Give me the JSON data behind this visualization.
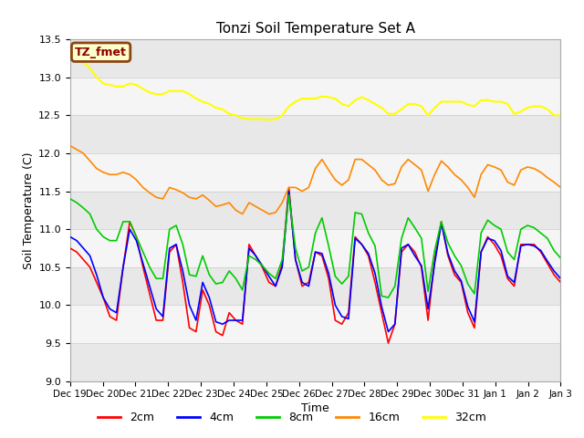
{
  "title": "Tonzi Soil Temperature Set A",
  "xlabel": "Time",
  "ylabel": "Soil Temperature (C)",
  "ylim": [
    9.0,
    13.5
  ],
  "yticks": [
    9.0,
    9.5,
    10.0,
    10.5,
    11.0,
    11.5,
    12.0,
    12.5,
    13.0,
    13.5
  ],
  "x_labels": [
    "Dec 19",
    "Dec 20",
    "Dec 21",
    "Dec 22",
    "Dec 23",
    "Dec 24",
    "Dec 25",
    "Dec 26",
    "Dec 27",
    "Dec 28",
    "Dec 29",
    "Dec 30",
    "Dec 31",
    "Jan 1",
    "Jan 2",
    "Jan 3"
  ],
  "annotation_text": "TZ_fmet",
  "annotation_bg": "#ffffcc",
  "annotation_border": "#8B4513",
  "annotation_text_color": "#8B0000",
  "colors": {
    "2cm": "#ff0000",
    "4cm": "#0000ff",
    "8cm": "#00cc00",
    "16cm": "#ff8800",
    "32cm": "#ffff00"
  },
  "bg_bands": [
    {
      "ymin": 9.0,
      "ymax": 9.5,
      "color": "#e8e8e8"
    },
    {
      "ymin": 9.5,
      "ymax": 10.0,
      "color": "#f5f5f5"
    },
    {
      "ymin": 10.0,
      "ymax": 10.5,
      "color": "#e8e8e8"
    },
    {
      "ymin": 10.5,
      "ymax": 11.0,
      "color": "#f5f5f5"
    },
    {
      "ymin": 11.0,
      "ymax": 11.5,
      "color": "#e8e8e8"
    },
    {
      "ymin": 11.5,
      "ymax": 12.0,
      "color": "#f5f5f5"
    },
    {
      "ymin": 12.0,
      "ymax": 12.5,
      "color": "#e8e8e8"
    },
    {
      "ymin": 12.5,
      "ymax": 13.0,
      "color": "#f5f5f5"
    },
    {
      "ymin": 13.0,
      "ymax": 13.5,
      "color": "#e8e8e8"
    }
  ],
  "series_2cm": [
    10.75,
    10.7,
    10.6,
    10.5,
    10.3,
    10.1,
    9.85,
    9.8,
    10.5,
    11.1,
    10.9,
    10.5,
    10.15,
    9.8,
    9.8,
    10.7,
    10.8,
    10.3,
    9.7,
    9.65,
    10.2,
    10.0,
    9.65,
    9.6,
    9.9,
    9.8,
    9.75,
    10.8,
    10.65,
    10.5,
    10.3,
    10.25,
    10.55,
    11.55,
    10.6,
    10.25,
    10.3,
    10.7,
    10.65,
    10.35,
    9.8,
    9.75,
    9.9,
    10.9,
    10.8,
    10.65,
    10.3,
    9.9,
    9.5,
    9.75,
    10.7,
    10.8,
    10.7,
    10.5,
    9.8,
    10.6,
    11.1,
    10.65,
    10.4,
    10.3,
    9.9,
    9.7,
    10.7,
    10.9,
    10.8,
    10.65,
    10.35,
    10.25,
    10.8,
    10.8,
    10.8,
    10.7,
    10.55,
    10.4,
    10.3
  ],
  "series_4cm": [
    10.9,
    10.85,
    10.75,
    10.65,
    10.4,
    10.1,
    9.95,
    9.9,
    10.5,
    11.0,
    10.85,
    10.55,
    10.25,
    9.95,
    9.85,
    10.75,
    10.8,
    10.45,
    10.0,
    9.8,
    10.3,
    10.1,
    9.78,
    9.75,
    9.8,
    9.8,
    9.8,
    10.75,
    10.65,
    10.52,
    10.38,
    10.25,
    10.5,
    11.5,
    10.6,
    10.3,
    10.25,
    10.7,
    10.68,
    10.42,
    10.0,
    9.85,
    9.82,
    10.88,
    10.8,
    10.68,
    10.42,
    9.98,
    9.65,
    9.75,
    10.75,
    10.8,
    10.65,
    10.52,
    9.95,
    10.55,
    11.08,
    10.68,
    10.45,
    10.32,
    9.98,
    9.78,
    10.7,
    10.88,
    10.85,
    10.72,
    10.38,
    10.3,
    10.78,
    10.8,
    10.78,
    10.72,
    10.58,
    10.45,
    10.35
  ],
  "series_8cm": [
    11.4,
    11.35,
    11.28,
    11.2,
    11.0,
    10.9,
    10.85,
    10.85,
    11.1,
    11.1,
    10.9,
    10.7,
    10.5,
    10.35,
    10.35,
    11.0,
    11.05,
    10.8,
    10.4,
    10.38,
    10.65,
    10.4,
    10.28,
    10.3,
    10.45,
    10.35,
    10.2,
    10.65,
    10.6,
    10.52,
    10.42,
    10.35,
    10.6,
    11.45,
    10.75,
    10.45,
    10.5,
    10.95,
    11.15,
    10.78,
    10.38,
    10.28,
    10.38,
    11.22,
    11.2,
    10.95,
    10.78,
    10.12,
    10.1,
    10.25,
    10.88,
    11.15,
    11.02,
    10.88,
    10.18,
    10.72,
    11.1,
    10.82,
    10.65,
    10.52,
    10.28,
    10.15,
    10.95,
    11.12,
    11.05,
    11.0,
    10.7,
    10.6,
    11.0,
    11.05,
    11.02,
    10.95,
    10.88,
    10.72,
    10.62
  ],
  "series_16cm": [
    12.1,
    12.05,
    12.0,
    11.9,
    11.8,
    11.75,
    11.72,
    11.72,
    11.75,
    11.72,
    11.65,
    11.55,
    11.48,
    11.42,
    11.4,
    11.55,
    11.52,
    11.48,
    11.42,
    11.4,
    11.45,
    11.38,
    11.3,
    11.32,
    11.35,
    11.25,
    11.2,
    11.35,
    11.3,
    11.25,
    11.2,
    11.22,
    11.35,
    11.55,
    11.55,
    11.5,
    11.55,
    11.8,
    11.92,
    11.78,
    11.65,
    11.58,
    11.65,
    11.92,
    11.92,
    11.85,
    11.78,
    11.65,
    11.58,
    11.6,
    11.82,
    11.92,
    11.85,
    11.78,
    11.5,
    11.72,
    11.9,
    11.82,
    11.72,
    11.65,
    11.55,
    11.42,
    11.72,
    11.85,
    11.82,
    11.78,
    11.62,
    11.58,
    11.78,
    11.82,
    11.8,
    11.75,
    11.68,
    11.62,
    11.55
  ],
  "series_32cm": [
    13.32,
    13.27,
    13.2,
    13.12,
    13.0,
    12.92,
    12.9,
    12.88,
    12.88,
    12.92,
    12.9,
    12.85,
    12.8,
    12.78,
    12.78,
    12.82,
    12.82,
    12.82,
    12.78,
    12.72,
    12.68,
    12.65,
    12.6,
    12.58,
    12.52,
    12.5,
    12.46,
    12.45,
    12.45,
    12.45,
    12.44,
    12.45,
    12.5,
    12.62,
    12.68,
    12.72,
    12.72,
    12.72,
    12.75,
    12.74,
    12.72,
    12.65,
    12.62,
    12.7,
    12.74,
    12.7,
    12.65,
    12.6,
    12.52,
    12.52,
    12.58,
    12.65,
    12.65,
    12.62,
    12.5,
    12.6,
    12.68,
    12.68,
    12.68,
    12.68,
    12.64,
    12.62,
    12.7,
    12.7,
    12.68,
    12.68,
    12.65,
    12.52,
    12.55,
    12.6,
    12.62,
    12.62,
    12.58,
    12.5,
    12.5
  ]
}
